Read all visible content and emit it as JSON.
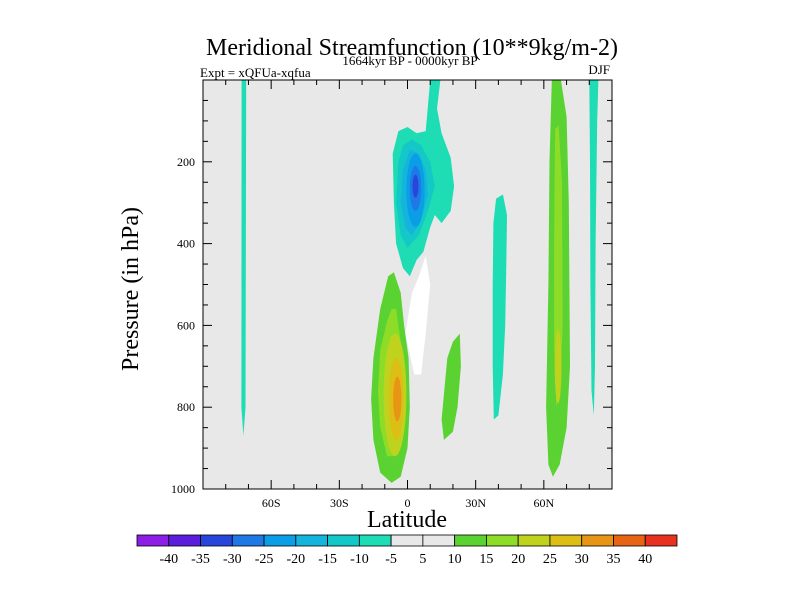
{
  "chart_data": {
    "type": "contour",
    "title": "Meridional Streamfunction (10**9kg/m-2)",
    "subtitle_left": "Expt = xQFUa-xqfua",
    "subtitle_center": "1664kyr BP - 0000kyr BP",
    "subtitle_right": "DJF",
    "xlabel": "Latitude",
    "ylabel": "Pressure (in hPa)",
    "xlim": [
      -90,
      90
    ],
    "ylim": [
      0,
      1000
    ],
    "y_inverted": true,
    "x_ticks": [
      {
        "value": -60,
        "label": "60S"
      },
      {
        "value": -30,
        "label": "30S"
      },
      {
        "value": 0,
        "label": "0"
      },
      {
        "value": 30,
        "label": "30N"
      },
      {
        "value": 60,
        "label": "60N"
      }
    ],
    "y_ticks": [
      {
        "value": 200,
        "label": "200"
      },
      {
        "value": 400,
        "label": "400"
      },
      {
        "value": 600,
        "label": "600"
      },
      {
        "value": 800,
        "label": "800"
      },
      {
        "value": 1000,
        "label": "1000"
      }
    ],
    "colorbar": {
      "levels": [
        "-40",
        "-35",
        "-30",
        "-25",
        "-20",
        "-15",
        "-10",
        "-5",
        "5",
        "10",
        "15",
        "20",
        "25",
        "30",
        "35",
        "40"
      ],
      "colors": [
        "#8c1ee6",
        "#5a1edc",
        "#2846dc",
        "#1e78e6",
        "#0a9ee6",
        "#14b4dc",
        "#14c8c8",
        "#1edcb4",
        "#e8e8e8",
        "#5ad232",
        "#8cdc28",
        "#bed21e",
        "#dcbe14",
        "#e69614",
        "#e66414",
        "#e6321e"
      ]
    },
    "plot_background": "#e8e8e8",
    "features": [
      {
        "name": "thin-band-60S",
        "lat": [
          -73,
          -71
        ],
        "p": [
          0,
          870
        ],
        "value": -5
      },
      {
        "name": "negative-cell-eq-aloft",
        "lat": [
          -5,
          18
        ],
        "p": [
          0,
          420
        ],
        "value": -30,
        "peak_lat": 3,
        "peak_p": 280
      },
      {
        "name": "positive-cell-sh-lower",
        "lat": [
          -16,
          0
        ],
        "p": [
          470,
          980
        ],
        "value": 30,
        "peak_lat": -4,
        "peak_p": 780
      },
      {
        "name": "band-20N",
        "lat": [
          15,
          23
        ],
        "p": [
          620,
          880
        ],
        "value": 10
      },
      {
        "name": "band-40N",
        "lat": [
          37,
          44
        ],
        "p": [
          280,
          830
        ],
        "value": -5
      },
      {
        "name": "positive-column-60N",
        "lat": [
          63,
          72
        ],
        "p": [
          0,
          970
        ],
        "value": 20
      },
      {
        "name": "negative-thin-70N",
        "lat": [
          80,
          84
        ],
        "p": [
          0,
          820
        ],
        "value": -5
      }
    ]
  }
}
